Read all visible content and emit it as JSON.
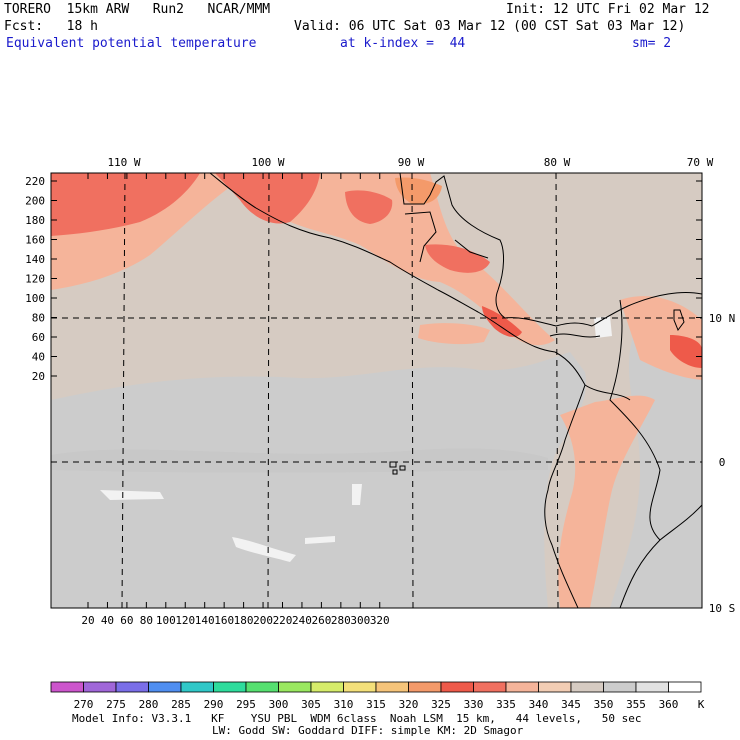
{
  "header": {
    "line1_left": "TORERO  15km ARW   Run2   NCAR/MMM",
    "line1_right": "Init: 12 UTC Fri 02 Mar 12",
    "line2_left": "Fcst:   18 h",
    "line2_right": "Valid: 06 UTC Sat 03 Mar 12 (00 CST Sat 03 Mar 12)",
    "field_name": "Equivalent potential temperature",
    "level": "at k-index =  44",
    "smoothing": "sm= 2"
  },
  "map": {
    "lon_labels": [
      "110 W",
      "100 W",
      "90 W",
      "80 W",
      "70 W"
    ],
    "lat_labels": [
      "10 N",
      "0",
      "10 S"
    ],
    "grid_y_ticks": [
      "220",
      "200",
      "180",
      "160",
      "140",
      "120",
      "100",
      "80",
      "60",
      "40",
      "20"
    ],
    "grid_x_ticks": [
      "20",
      "40",
      "60",
      "80",
      "100",
      "120",
      "140",
      "160",
      "180",
      "200",
      "220",
      "240",
      "260",
      "280",
      "300",
      "320"
    ]
  },
  "colorbar": {
    "labels": [
      "270",
      "275",
      "280",
      "285",
      "290",
      "295",
      "300",
      "305",
      "310",
      "315",
      "320",
      "325",
      "330",
      "335",
      "340",
      "345",
      "350",
      "355",
      "360"
    ],
    "unit": "K",
    "colors": [
      "#cc55cc",
      "#a066d8",
      "#7a6ee8",
      "#4f8ef0",
      "#30c8c8",
      "#2edc9c",
      "#56e070",
      "#9ae860",
      "#d6ec6a",
      "#f4e07a",
      "#f6c47a",
      "#f49a6a",
      "#ee5a4a",
      "#f07060",
      "#f5b49a",
      "#f2cdb4",
      "#d6cbc2",
      "#cccccc",
      "#e2e2e2",
      "#ffffff"
    ]
  },
  "footer": {
    "line1": "Model Info: V3.3.1   KF    YSU PBL  WDM 6class  Noah LSM  15 km,   44 levels,   50 sec",
    "line2": "LW: Godd SW: Goddard DIFF: simple KM: 2D Smagor"
  }
}
